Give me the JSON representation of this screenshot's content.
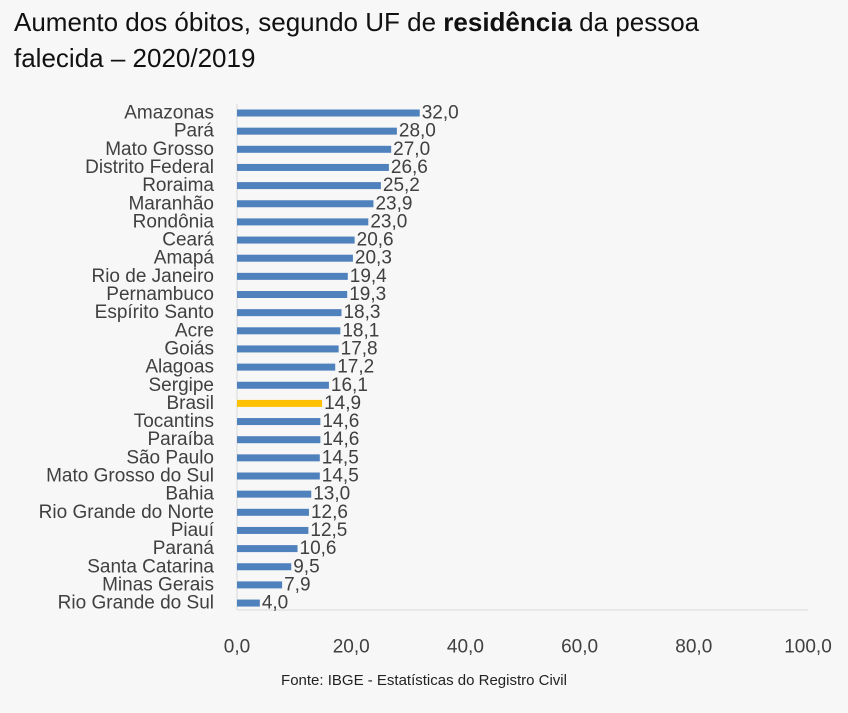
{
  "title": {
    "part1": "Aumento dos óbitos, segundo UF de ",
    "bold": "residência",
    "part2": " da pessoa",
    "line2": "falecida – 2020/2019"
  },
  "source": "Fonte: IBGE - Estatísticas do Registro Civil",
  "colors": {
    "bar": "#4f81bd",
    "highlight": "#ffc000",
    "text": "#404040",
    "axis": "#d9d9d9"
  },
  "chart_data": {
    "type": "bar",
    "orientation": "horizontal",
    "categories": [
      "Amazonas",
      "Pará",
      "Mato Grosso",
      "Distrito Federal",
      "Roraima",
      "Maranhão",
      "Rondônia",
      "Ceará",
      "Amapá",
      "Rio de Janeiro",
      "Pernambuco",
      "Espírito Santo",
      "Acre",
      "Goiás",
      "Alagoas",
      "Sergipe",
      "Brasil",
      "Tocantins",
      "Paraíba",
      "São Paulo",
      "Mato Grosso do Sul",
      "Bahia",
      "Rio Grande do Norte",
      "Piauí",
      "Paraná",
      "Santa Catarina",
      "Minas Gerais",
      "Rio Grande do Sul"
    ],
    "values": [
      32.0,
      28.0,
      27.0,
      26.6,
      25.2,
      23.9,
      23.0,
      20.6,
      20.3,
      19.4,
      19.3,
      18.3,
      18.1,
      17.8,
      17.2,
      16.1,
      14.9,
      14.6,
      14.6,
      14.5,
      14.5,
      13.0,
      12.6,
      12.5,
      10.6,
      9.5,
      7.9,
      4.0
    ],
    "value_labels": [
      "32,0",
      "28,0",
      "27,0",
      "26,6",
      "25,2",
      "23,9",
      "23,0",
      "20,6",
      "20,3",
      "19,4",
      "19,3",
      "18,3",
      "18,1",
      "17,8",
      "17,2",
      "16,1",
      "14,9",
      "14,6",
      "14,6",
      "14,5",
      "14,5",
      "13,0",
      "12,6",
      "12,5",
      "10,6",
      "9,5",
      "7,9",
      "4,0"
    ],
    "highlight_category": "Brasil",
    "xlim": [
      0,
      100
    ],
    "xticks": [
      0,
      20,
      40,
      60,
      80,
      100
    ],
    "xtick_labels": [
      "0,0",
      "20,0",
      "40,0",
      "60,0",
      "80,0",
      "100,0"
    ],
    "grid": false
  }
}
